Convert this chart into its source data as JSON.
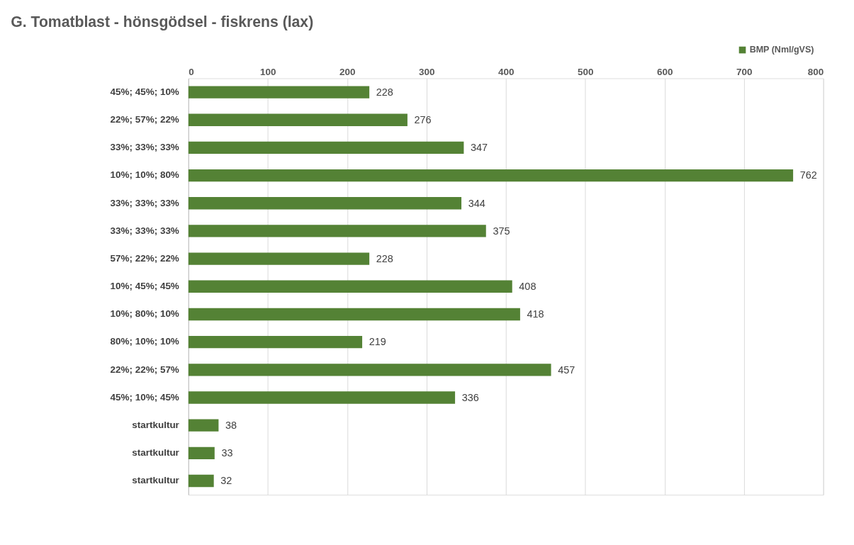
{
  "chart_data": {
    "type": "bar",
    "orientation": "horizontal",
    "title": "G.  Tomatblast - hönsgödsel - fiskrens (lax)",
    "categories": [
      "45%; 45%; 10%",
      "22%; 57%; 22%",
      "33%; 33%; 33%",
      "10%; 10%; 80%",
      "33%; 33%; 33%",
      "33%; 33%; 33%",
      "57%; 22%; 22%",
      "10%; 45%; 45%",
      "10%; 80%; 10%",
      "80%; 10%; 10%",
      "22%; 22%; 57%",
      "45%; 10%; 45%",
      "startkultur",
      "startkultur",
      "startkultur"
    ],
    "series": [
      {
        "name": "BMP (Nml/gVS)",
        "color": "#548235",
        "values": [
          228,
          276,
          347,
          762,
          344,
          375,
          228,
          408,
          418,
          219,
          457,
          336,
          38,
          33,
          32
        ]
      }
    ],
    "xlim": [
      0,
      800
    ],
    "xticks": [
      0,
      100,
      200,
      300,
      400,
      500,
      600,
      700,
      800
    ],
    "grid": "x",
    "legend": "top right",
    "data_labels": true
  }
}
